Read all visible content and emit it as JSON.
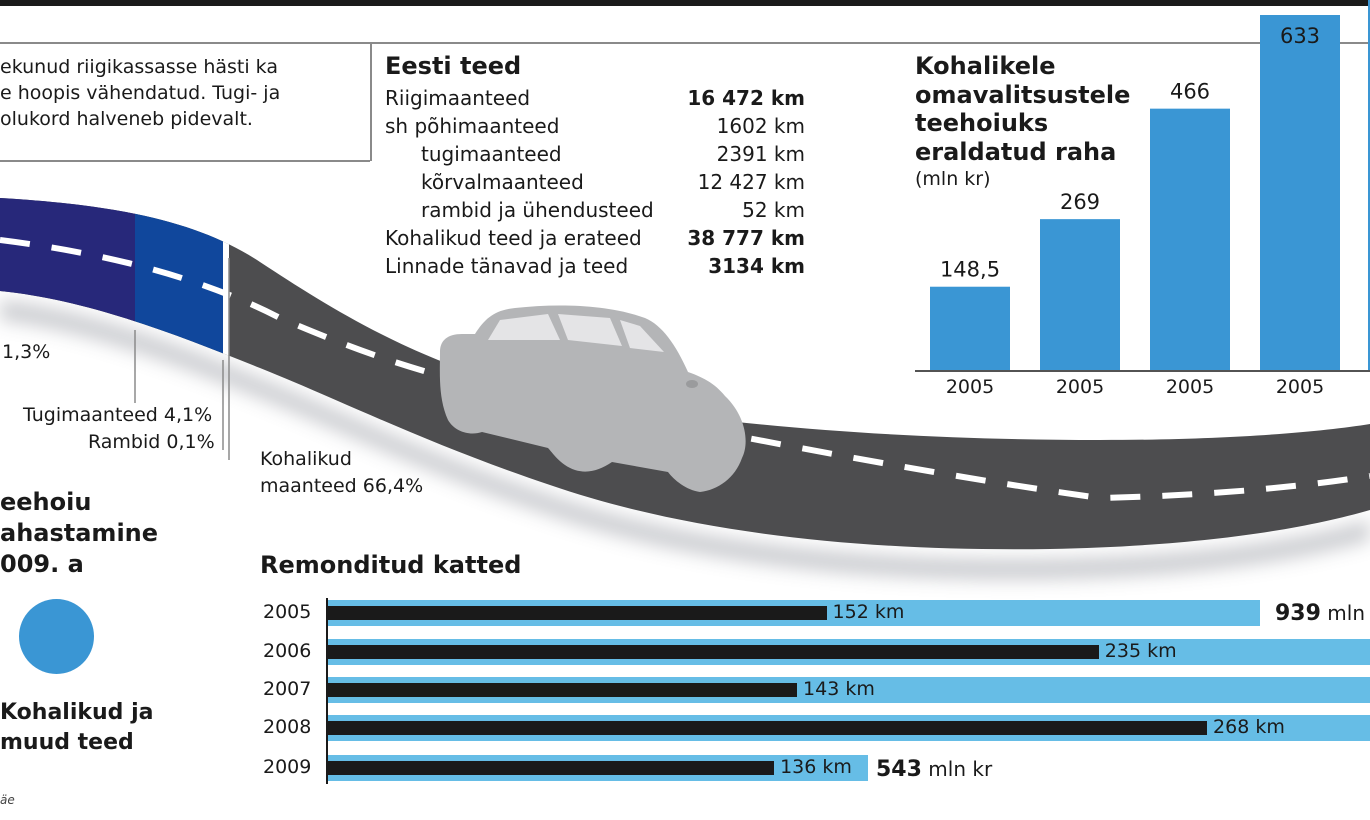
{
  "intro": {
    "lines": [
      "ekunud riigikassasse hästi ka",
      "e hoopis vähendatud. Tugi- ja",
      "olukord halveneb pidevalt."
    ]
  },
  "table": {
    "title": "Eesti teed",
    "rows": [
      {
        "label": "Riigimaanteed",
        "value": "16 472 km",
        "bold": true
      },
      {
        "label": "sh  põhimaanteed",
        "value": "1602 km",
        "bold": false
      },
      {
        "label": "tugimaanteed",
        "value": "2391 km",
        "bold": false
      },
      {
        "label": "kõrvalmaanteed",
        "value": "12 427 km",
        "bold": false
      },
      {
        "label": "rambid ja ühendusteed",
        "value": "52 km",
        "bold": false
      },
      {
        "label": "Kohalikud teed ja erateed",
        "value": "38 777 km",
        "bold": true
      },
      {
        "label": "Linnade tänavad ja teed",
        "value": "3134 km",
        "bold": true
      }
    ]
  },
  "road": {
    "labels": [
      "1,3%",
      "Tugimaanteed 4,1%",
      "Rambid 0,1%",
      "Kohalikud",
      "maanteed 66,4%"
    ],
    "colors": {
      "dark_blue": "#27287a",
      "blue": "#10479c",
      "asphalt": "#4d4d4f",
      "car": "#b4b5b7"
    }
  },
  "funding": {
    "title_lines": [
      "eehoiu",
      "ahastamine",
      "009. a"
    ],
    "legend_lines": [
      "Kohalikud ja",
      "muud teed"
    ],
    "color": "#3a96d4"
  },
  "footnote": "äe",
  "chart_data": [
    {
      "type": "bar",
      "title": "Kohalikele omavalitsustele teehoiuks eraldatud raha",
      "title_lines": [
        "Kohalikele",
        "omavalitsustele",
        "teehoiuks",
        "eraldatud raha"
      ],
      "subtitle": "(mln kr)",
      "categories": [
        "2005",
        "2005",
        "2005",
        "2005"
      ],
      "values": [
        148.5,
        269,
        466,
        633
      ],
      "value_labels": [
        "148,5",
        "269",
        "466",
        "633"
      ],
      "ylim": [
        0,
        633
      ],
      "color": "#3a96d4",
      "grid": false
    },
    {
      "type": "bar",
      "orientation": "horizontal",
      "title": "Remonditud katted",
      "categories": [
        "2005",
        "2006",
        "2007",
        "2008",
        "2009"
      ],
      "series": [
        {
          "values": [
            152,
            235,
            143,
            268,
            136
          ],
          "labels": [
            "152 km",
            "235 km",
            "143 km",
            "268 km",
            "136 km"
          ],
          "color": "#1a1a1a"
        },
        {
          "values": [
            939,
            null,
            null,
            null,
            543
          ],
          "labels": [
            "939",
            "",
            "",
            "",
            "543"
          ],
          "color": "#66bde6"
        }
      ],
      "money_unit": "mln k",
      "money_unit_2009": "mln kr"
    }
  ]
}
